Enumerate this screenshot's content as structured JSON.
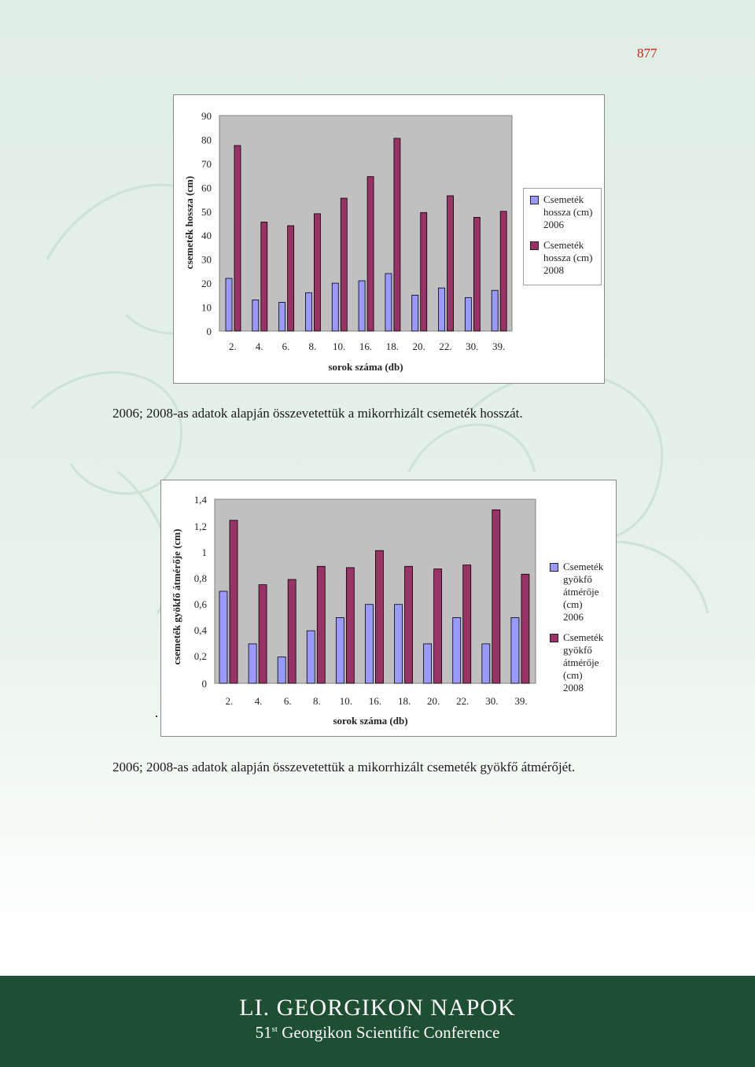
{
  "page_number": "877",
  "colors": {
    "series_2006": "#9999ff",
    "series_2008": "#993366",
    "plot_bg": "#c0c0c0",
    "footer_bg": "#1f4f33",
    "page_number": "#c0241b"
  },
  "chart_data": [
    {
      "type": "bar",
      "categories": [
        "2.",
        "4.",
        "6.",
        "8.",
        "10.",
        "16.",
        "18.",
        "20.",
        "22.",
        "30.",
        "39."
      ],
      "series": [
        {
          "name": "Csemeték hossza (cm) 2006",
          "values": [
            22,
            13,
            12,
            16,
            20,
            21,
            24,
            15,
            18,
            14,
            17
          ]
        },
        {
          "name": "Csemeték hossza (cm) 2008",
          "values": [
            77.5,
            45.5,
            44,
            49,
            55.5,
            64.5,
            80.5,
            49.5,
            56.5,
            47.5,
            50
          ]
        }
      ],
      "yticks": [
        "0",
        "10",
        "20",
        "30",
        "40",
        "50",
        "60",
        "70",
        "80",
        "90"
      ],
      "ylim": [
        0,
        90
      ],
      "xlabel": "sorok száma (db)",
      "ylabel": "csemeték hossza (cm)",
      "legend": [
        "Csemeték hossza (cm) 2006",
        "Csemeték hossza (cm) 2008"
      ],
      "legend_position": "right",
      "grid": false
    },
    {
      "type": "bar",
      "categories": [
        "2.",
        "4.",
        "6.",
        "8.",
        "10.",
        "16.",
        "18.",
        "20.",
        "22.",
        "30.",
        "39."
      ],
      "series": [
        {
          "name": "Csemeték gyökfő átmérője (cm) 2006",
          "values": [
            0.7,
            0.3,
            0.2,
            0.4,
            0.5,
            0.6,
            0.6,
            0.3,
            0.5,
            0.3,
            0.5
          ]
        },
        {
          "name": "Csemeték gyökfő átmérője (cm) 2008",
          "values": [
            1.24,
            0.75,
            0.79,
            0.89,
            0.88,
            1.01,
            0.89,
            0.87,
            0.9,
            1.32,
            0.83
          ]
        }
      ],
      "yticks": [
        "0",
        "0,2",
        "0,4",
        "0,6",
        "0,8",
        "1",
        "1,2",
        "1,4"
      ],
      "ylim": [
        0,
        1.4
      ],
      "xlabel": "sorok száma (db)",
      "ylabel": "csemeték gyökfő átmérője (cm)",
      "legend": [
        "Csemeték gyökfő átmérője (cm) 2006",
        "Csemeték gyökfő átmérője (cm) 2008"
      ],
      "legend_position": "right",
      "grid": false
    }
  ],
  "legends": [
    [
      {
        "lines": [
          "Csemeték",
          "hossza (cm)",
          "2006"
        ]
      },
      {
        "lines": [
          "Csemeték",
          "hossza (cm)",
          "2008"
        ]
      }
    ],
    [
      {
        "lines": [
          "Csemeték",
          "gyökfő",
          "átmérője",
          "(cm) 2006"
        ]
      },
      {
        "lines": [
          "Csemeték",
          "gyökfő",
          "átmérője",
          "(cm) 2008"
        ]
      }
    ]
  ],
  "captions": {
    "chart1": "2006; 2008-as adatok alapján összevetettük a mikorrhizált csemeték hosszát.",
    "chart2": "2006; 2008-as adatok alapján összevetettük a mikorrhizált csemeték gyökfő átmérőjét."
  },
  "footer": {
    "title": "LI. GEORGIKON NAPOK",
    "subtitle_number": "51",
    "subtitle_sup": "st",
    "subtitle_rest": " Georgikon Scientific Conference"
  }
}
